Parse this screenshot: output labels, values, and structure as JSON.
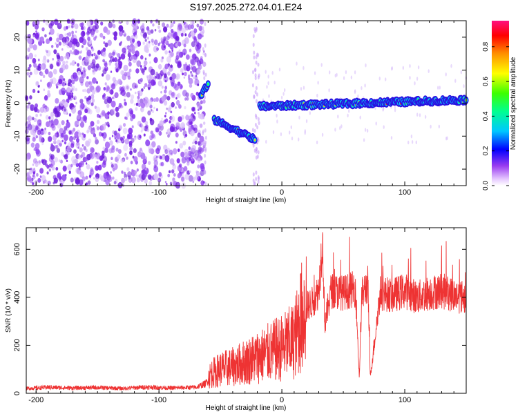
{
  "title": "S197.2025.272.04.01.E24",
  "colors": {
    "snr_line": "#ee3333",
    "axis": "#000000",
    "speckle": "#8a3ff0",
    "background": "#ffffff"
  },
  "chart_data": [
    {
      "type": "heatmap",
      "name": "spectrogram",
      "title": "S197.2025.272.04.01.E24",
      "xlabel": "Height of straight line (km)",
      "ylabel": "Frequency (Hz)",
      "xlim": [
        -208,
        150
      ],
      "ylim": [
        -25,
        25
      ],
      "xticks": [
        -200,
        -100,
        0,
        100
      ],
      "xtick_labels": [
        "-200",
        "-100",
        "0",
        "100"
      ],
      "yticks": [
        -20,
        -10,
        0,
        10,
        20
      ],
      "ytick_labels": [
        "-20",
        "-10",
        "0",
        "10",
        "20"
      ],
      "ridge": [
        {
          "x": [
            -66,
            -60
          ],
          "y": [
            2,
            6
          ]
        },
        {
          "x": [
            -55,
            -22
          ],
          "y": [
            -5,
            -11
          ]
        },
        {
          "x": [
            -18,
            150
          ],
          "y": [
            -1,
            1
          ]
        }
      ],
      "noise_region_x": [
        -208,
        -63
      ],
      "colorbar": {
        "label": "Normalized spectral amplitude",
        "range": [
          0.0,
          0.95
        ],
        "ticks": [
          0.0,
          0.2,
          0.4,
          0.6,
          0.8
        ],
        "tick_labels": [
          "0.0",
          "0.2",
          "0.4",
          "0.6",
          "0.8"
        ]
      }
    },
    {
      "type": "line",
      "name": "snr",
      "xlabel": "Height of straight line (km)",
      "ylabel": "SNR (10 * v/v)",
      "xlim": [
        -208,
        150
      ],
      "ylim": [
        0,
        690
      ],
      "xticks": [
        -200,
        -100,
        0,
        100
      ],
      "xtick_labels": [
        "-200",
        "-100",
        "0",
        "100"
      ],
      "yticks": [
        0,
        200,
        400,
        600
      ],
      "ytick_labels": [
        "0",
        "200",
        "400",
        "600"
      ],
      "series": [
        {
          "name": "SNR",
          "x": [
            -208,
            -190,
            -170,
            -150,
            -130,
            -110,
            -90,
            -70,
            -62,
            -58,
            -50,
            -40,
            -30,
            -20,
            -10,
            0,
            10,
            20,
            25,
            30,
            33,
            35,
            40,
            50,
            60,
            63,
            65,
            70,
            72,
            80,
            90,
            100,
            110,
            120,
            130,
            140,
            150
          ],
          "values": [
            20,
            25,
            22,
            24,
            20,
            26,
            22,
            25,
            40,
            80,
            100,
            110,
            130,
            150,
            170,
            190,
            220,
            380,
            400,
            450,
            680,
            300,
            450,
            440,
            460,
            70,
            430,
            480,
            70,
            440,
            430,
            450,
            420,
            440,
            450,
            430,
            420
          ]
        }
      ]
    }
  ]
}
